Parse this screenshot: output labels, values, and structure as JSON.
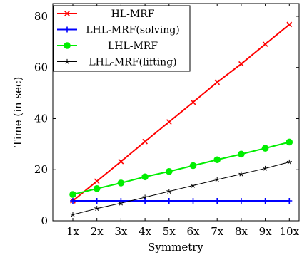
{
  "chart_data": {
    "type": "line",
    "title": "",
    "xlabel": "Symmetry",
    "ylabel": "Time (in sec)",
    "categories": [
      "1x",
      "2x",
      "3x",
      "4x",
      "5x",
      "6x",
      "7x",
      "8x",
      "9x",
      "10x"
    ],
    "ylim": [
      0,
      85
    ],
    "yticks": [
      0,
      20,
      40,
      60,
      80
    ],
    "grid": false,
    "legend_position": "top-left",
    "series": [
      {
        "name": "HL-MRF",
        "color": "#ff0000",
        "marker": "x",
        "values": [
          7.8,
          15.5,
          23.2,
          31.0,
          38.7,
          46.4,
          54.2,
          61.4,
          69.1,
          76.8
        ]
      },
      {
        "name": "LHL-MRF(solving)",
        "color": "#0000ff",
        "marker": "plus",
        "values": [
          7.8,
          7.8,
          7.8,
          7.8,
          7.8,
          7.8,
          7.8,
          7.8,
          7.8,
          7.8
        ]
      },
      {
        "name": "LHL-MRF",
        "color": "#00ee00",
        "marker": "circle",
        "values": [
          10.3,
          12.6,
          14.8,
          17.2,
          19.3,
          21.6,
          23.9,
          26.1,
          28.4,
          30.8
        ]
      },
      {
        "name": "LHL-MRF(lifting)",
        "color": "#000000",
        "marker": "star",
        "values": [
          2.4,
          4.8,
          6.9,
          9.2,
          11.5,
          13.8,
          16.1,
          18.3,
          20.5,
          23.0
        ]
      }
    ]
  }
}
